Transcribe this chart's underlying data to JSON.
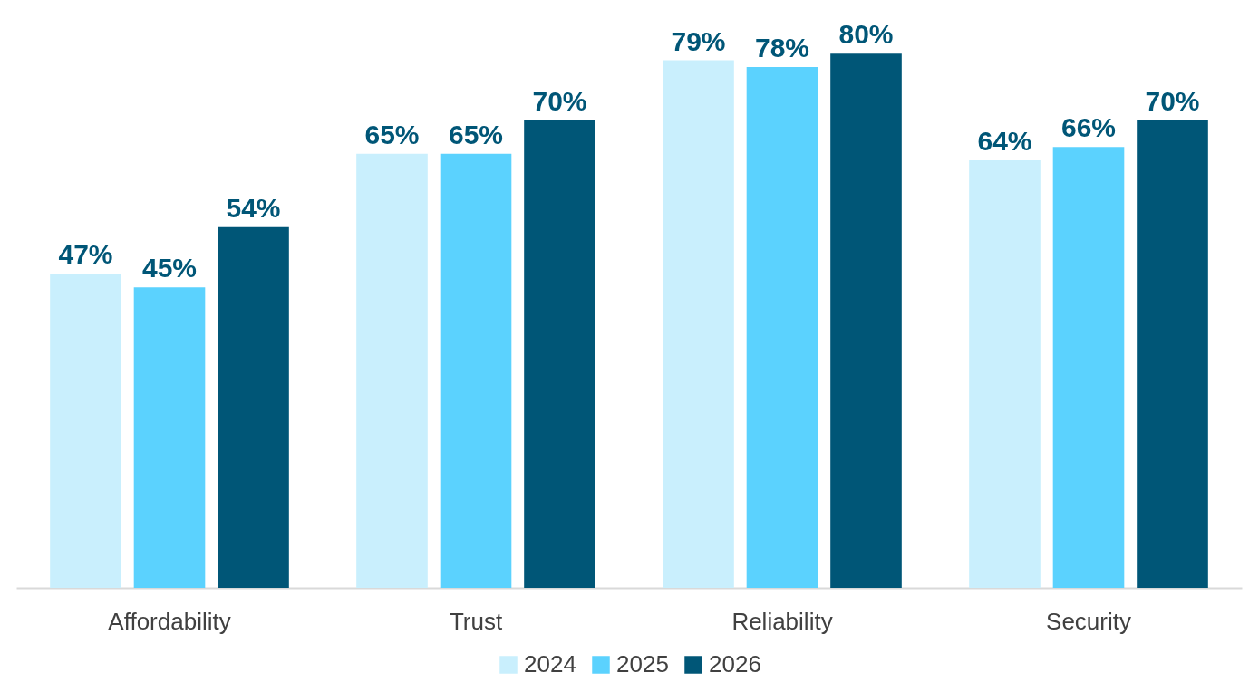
{
  "chart_data": {
    "type": "bar",
    "categories": [
      "Affordability",
      "Trust",
      "Reliability",
      "Security"
    ],
    "series": [
      {
        "name": "2024",
        "color": "#c9effd",
        "values": [
          47,
          65,
          79,
          64
        ],
        "value_labels": [
          "47%",
          "65%",
          "79%",
          "64%"
        ]
      },
      {
        "name": "2025",
        "color": "#5bd2fe",
        "values": [
          45,
          65,
          78,
          66
        ],
        "value_labels": [
          "45%",
          "65%",
          "78%",
          "66%"
        ]
      },
      {
        "name": "2026",
        "color": "#005677",
        "values": [
          54,
          70,
          80,
          70
        ],
        "value_labels": [
          "54%",
          "70%",
          "80%",
          "70%"
        ]
      }
    ],
    "legend": "bottom"
  }
}
